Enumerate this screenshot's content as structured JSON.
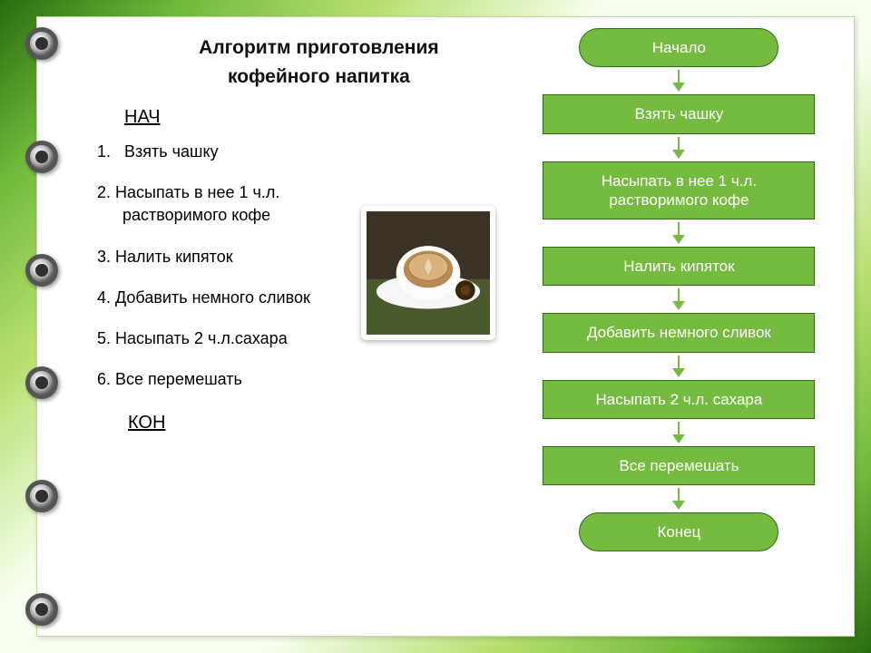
{
  "title_line1": "Алгоритм приготовления",
  "title_line2": "кофейного напитка",
  "start_keyword": "НАЧ",
  "end_keyword": "КОН",
  "text_steps": [
    {
      "num": "1.",
      "text": "Взять чашку",
      "indent": false
    },
    {
      "num": "2.",
      "text": "Насыпать в нее 1 ч.л.",
      "cont": "растворимого кофе"
    },
    {
      "num": "3.",
      "text": "Налить кипяток"
    },
    {
      "num": "4.",
      "text": "Добавить немного сливок"
    },
    {
      "num": "5.",
      "text": "Насыпать 2 ч.л.сахара"
    },
    {
      "num": "6.",
      "text": "Все перемешать"
    }
  ],
  "flowchart": {
    "type": "flowchart",
    "node_fill": "#74bb3f",
    "node_border": "#2f6b17",
    "node_text_color": "#ffffff",
    "arrow_color": "#74bb3f",
    "node_font_size": 17,
    "nodes": [
      {
        "id": "start",
        "shape": "terminal",
        "label": "Начало"
      },
      {
        "id": "n1",
        "shape": "process",
        "label": "Взять чашку"
      },
      {
        "id": "n2",
        "shape": "process",
        "label": "Насыпать в нее 1 ч.л. растворимого кофе"
      },
      {
        "id": "n3",
        "shape": "process",
        "label": "Налить кипяток"
      },
      {
        "id": "n4",
        "shape": "process",
        "label": "Добавить немного сливок"
      },
      {
        "id": "n5",
        "shape": "process",
        "label": "Насыпать 2 ч.л. сахара"
      },
      {
        "id": "n6",
        "shape": "process",
        "label": "Все перемешать"
      },
      {
        "id": "end",
        "shape": "terminal",
        "label": "Конец"
      }
    ],
    "edges": [
      [
        "start",
        "n1"
      ],
      [
        "n1",
        "n2"
      ],
      [
        "n2",
        "n3"
      ],
      [
        "n3",
        "n4"
      ],
      [
        "n4",
        "n5"
      ],
      [
        "n5",
        "n6"
      ],
      [
        "n6",
        "end"
      ]
    ]
  },
  "colors": {
    "page_bg": "#ffffff",
    "frame_gradient": [
      "#2a6b0f",
      "#6fb93a",
      "#b8e070",
      "#f8fff0"
    ],
    "title_color": "#111111",
    "body_text": "#000000"
  },
  "image": {
    "alt": "Чашка кофе с пенкой на блюдце",
    "description": "coffee-cup-photo"
  },
  "binder_rings": 6
}
